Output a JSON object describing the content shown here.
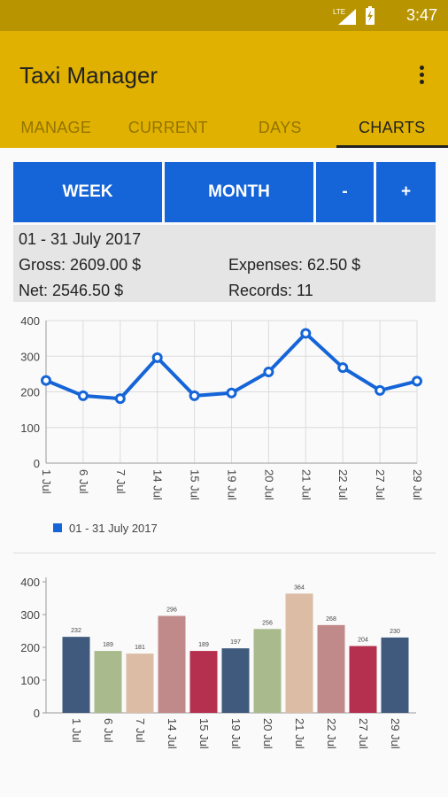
{
  "status": {
    "time": "3:47",
    "network": "LTE"
  },
  "app": {
    "title": "Taxi Manager"
  },
  "tabs": [
    {
      "label": "MANAGE"
    },
    {
      "label": "CURRENT"
    },
    {
      "label": "DAYS"
    },
    {
      "label": "CHARTS"
    }
  ],
  "controls": {
    "week": "WEEK",
    "month": "MONTH",
    "minus": "-",
    "plus": "+"
  },
  "summary": {
    "period": "01 - 31 July 2017",
    "gross": "Gross: 2609.00 $",
    "expenses": "Expenses: 62.50 $",
    "net": "Net: 2546.50 $",
    "records": "Records: 11"
  },
  "colors": {
    "accent": "#e0b100",
    "status_bar": "#b89500",
    "button": "#1565d8",
    "line": "#1565d8"
  },
  "chart_data": [
    {
      "type": "line",
      "categories": [
        "1 Jul",
        "6 Jul",
        "7 Jul",
        "14 Jul",
        "15 Jul",
        "19 Jul",
        "20 Jul",
        "21 Jul",
        "22 Jul",
        "27 Jul",
        "29 Jul"
      ],
      "values": [
        232,
        189,
        181,
        296,
        189,
        197,
        256,
        364,
        268,
        204,
        230
      ],
      "ylim": [
        0,
        400
      ],
      "yticks": [
        "0",
        "100",
        "200",
        "300",
        "400"
      ],
      "grid": true,
      "legend": {
        "label": "01 - 31 July 2017",
        "position": "bottom-left"
      }
    },
    {
      "type": "bar",
      "categories": [
        "1 Jul",
        "6 Jul",
        "7 Jul",
        "14 Jul",
        "15 Jul",
        "19 Jul",
        "20 Jul",
        "21 Jul",
        "22 Jul",
        "27 Jul",
        "29 Jul"
      ],
      "values": [
        232,
        189,
        181,
        296,
        189,
        197,
        256,
        364,
        268,
        204,
        230
      ],
      "labels": [
        "232",
        "189",
        "181",
        "296",
        "189",
        "197",
        "256",
        "364",
        "268",
        "204",
        "230"
      ],
      "ylim": [
        0,
        400
      ],
      "yticks": [
        "0",
        "100",
        "200",
        "300",
        "400"
      ],
      "grid": false,
      "bar_colors": [
        "#3f5a7d",
        "#a9bb8d",
        "#dcbca4",
        "#c18a8a",
        "#b5304f",
        "#3f5a7d",
        "#a9bb8d",
        "#dcbca4",
        "#c18a8a",
        "#b5304f",
        "#3f5a7d"
      ]
    }
  ]
}
